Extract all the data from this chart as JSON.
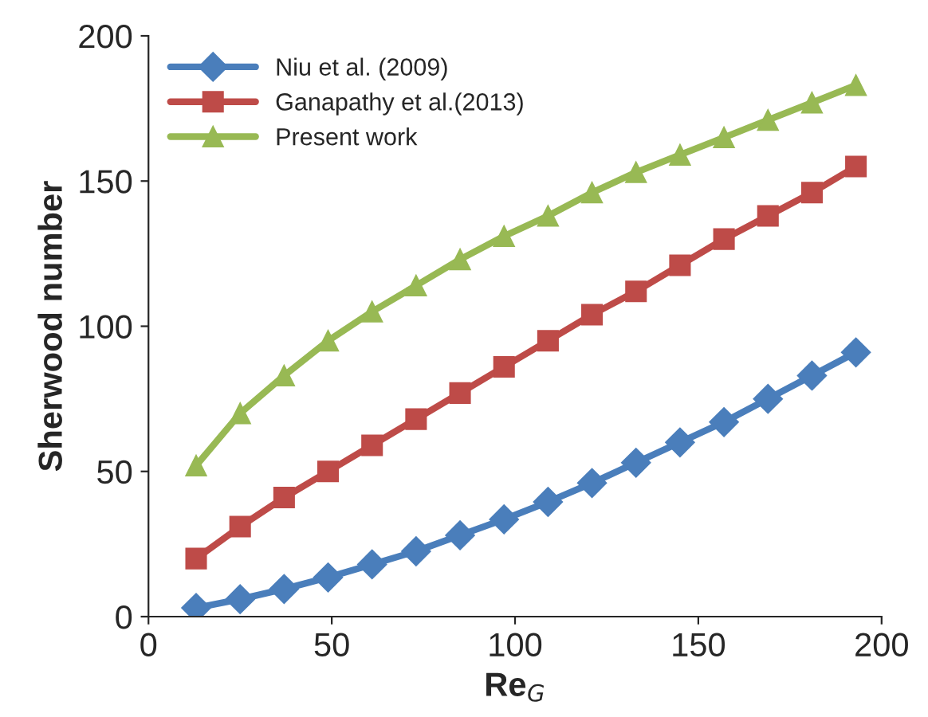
{
  "chart_data": {
    "type": "line",
    "xlabel": "Re$_{G}$",
    "ylabel": "Sherwood number",
    "x": [
      13,
      25,
      37,
      49,
      61,
      73,
      85,
      97,
      109,
      121,
      133,
      145,
      157,
      169,
      181,
      193
    ],
    "series": [
      {
        "name": "Niu et al. (2009)",
        "color": "#4a7ebb",
        "marker": "diamond",
        "values": [
          3,
          6,
          9.5,
          13.5,
          18,
          22.5,
          28,
          33.5,
          39.5,
          46,
          53,
          60,
          67,
          75,
          83,
          91
        ]
      },
      {
        "name": "Ganapathy et al.(2013)",
        "color": "#be4b48",
        "marker": "square",
        "values": [
          20,
          31,
          41,
          50,
          59,
          68,
          77,
          86,
          95,
          104,
          112,
          121,
          130,
          138,
          146,
          155
        ]
      },
      {
        "name": "Present work",
        "color": "#98b954",
        "marker": "triangle",
        "values": [
          52,
          70,
          83,
          95,
          105,
          114,
          123,
          131,
          138,
          146,
          153,
          159,
          165,
          171,
          177,
          183
        ]
      }
    ],
    "xlim": [
      0,
      200
    ],
    "xticks": [
      0,
      50,
      100,
      150,
      200
    ],
    "ylim": [
      0,
      200
    ],
    "yticks": [
      0,
      50,
      100,
      150,
      200
    ],
    "grid": false,
    "legend": "top left"
  }
}
